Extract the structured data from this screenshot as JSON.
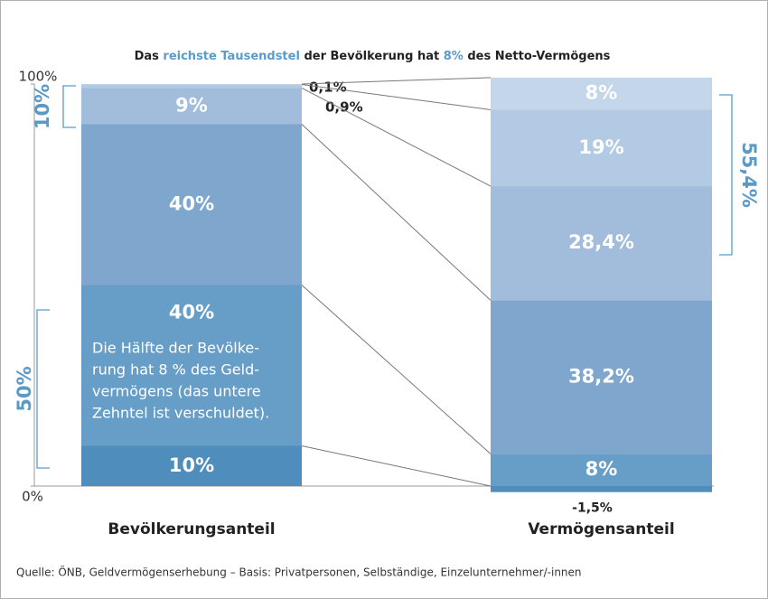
{
  "chart_data": {
    "type": "stacked_bar",
    "title": [
      "Das ",
      "reichste Tausendstel",
      " der Bevölkerung hat ",
      "8%",
      " des Netto-Vermögens"
    ],
    "categories": [
      "Bevölkerungsanteil",
      "Vermögensanteil"
    ],
    "series": [
      {
        "color": "#4f8dbc",
        "values": [
          10,
          -1.5
        ],
        "value_labels": [
          "10%",
          "-1,5%"
        ]
      },
      {
        "color": "#679ec8",
        "values": [
          40,
          8
        ],
        "value_labels": [
          "40%",
          "8%"
        ]
      },
      {
        "color": "#7fa6cd",
        "values": [
          40,
          38.2
        ],
        "value_labels": [
          "40%",
          "38,2%"
        ]
      },
      {
        "color": "#a1bddb",
        "values": [
          9,
          28.4
        ],
        "value_labels": [
          "9%",
          "28,4%"
        ]
      },
      {
        "color": "#b2cae3",
        "values": [
          0.9,
          19
        ],
        "value_labels": [
          "0,9%",
          "19%"
        ]
      },
      {
        "color": "#c4d6ea",
        "values": [
          0.1,
          8
        ],
        "value_labels": [
          "0,1%",
          "8%"
        ]
      }
    ],
    "annotation": [
      "Die Hälfte der Bevölke-",
      "rung hat 8 % des Geld-",
      "vermögens (das untere",
      "Zehntel ist verschuldet)."
    ],
    "brackets": [
      "10%",
      "50%",
      "55,4%"
    ],
    "ylim": [
      0,
      100
    ],
    "yticks": [
      {
        "value": 0,
        "label": "0%"
      },
      {
        "value": 100,
        "label": "100%"
      }
    ],
    "source": "Quelle: ÖNB, Geldvermögenserhebung – Basis: Privatpersonen, Selbständige, Einzelunternehmer/-innen"
  }
}
